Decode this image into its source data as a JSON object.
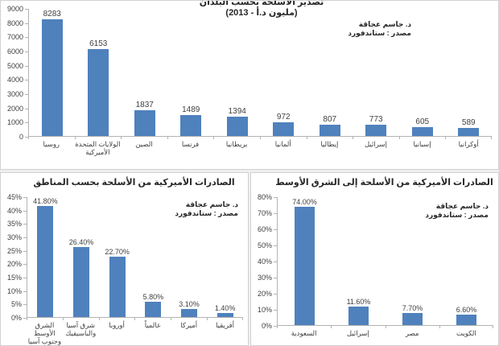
{
  "accent_color": "#4f81bd",
  "chart_data": [
    {
      "id": "by_country",
      "type": "bar",
      "title_lines": [
        "تصدير الأسلحة بحسب البلدان",
        "(مليون د.أ - 2013)"
      ],
      "attribution": [
        "د. جاسم عجاقة",
        "مصدر : ستاندفورد"
      ],
      "categories": [
        "روسيا",
        "الولايات المتحدة\nالأميركية",
        "الصين",
        "فرنسا",
        "بريطانيا",
        "ألمانيا",
        "إيطاليا",
        "إسرائيل",
        "إسبانيا",
        "أوكرانيا"
      ],
      "values": [
        8283,
        6153,
        1837,
        1489,
        1394,
        972,
        807,
        773,
        605,
        589
      ],
      "value_labels": [
        "8283",
        "6153",
        "1837",
        "1489",
        "1394",
        "972",
        "807",
        "773",
        "605",
        "589"
      ],
      "ylim": [
        0,
        9000
      ],
      "ytick_labels": [
        "0",
        "1000",
        "2000",
        "3000",
        "4000",
        "5000",
        "6000",
        "7000",
        "8000",
        "9000"
      ],
      "grid": "off",
      "legend": "none",
      "bar_color": "#4f81bd"
    },
    {
      "id": "by_region",
      "type": "bar",
      "title_lines": [
        "الصادرات الأميركية من الأسلحة بحسب المناطق"
      ],
      "attribution": [
        "د. جاسم عجاقة",
        "مصدر : ستاندفورد"
      ],
      "categories": [
        "الشرق الأوسط\nوجنوب آسيا",
        "شرق آسيا\nوالباسيفيك",
        "أوروبا",
        "عالمياً",
        "أميركا",
        "أفريقيا"
      ],
      "values": [
        41.8,
        26.4,
        22.7,
        5.8,
        3.1,
        1.4
      ],
      "value_labels": [
        "41.80%",
        "26.40%",
        "22.70%",
        "5.80%",
        "3.10%",
        "1.40%"
      ],
      "ylim": [
        0,
        45
      ],
      "ytick_labels": [
        "0%",
        "5%",
        "10%",
        "15%",
        "20%",
        "25%",
        "30%",
        "35%",
        "40%",
        "45%"
      ],
      "grid": "off",
      "legend": "none",
      "bar_color": "#4f81bd"
    },
    {
      "id": "to_middle_east",
      "type": "bar",
      "title_lines": [
        "الصادرات الأميركية من الأسلحة إلى الشرق الأوسط"
      ],
      "attribution": [
        "د. جاسم عجاقة",
        "مصدر : ستاندفورد"
      ],
      "categories": [
        "السعودية",
        "إسرائيل",
        "مصر",
        "الكويت"
      ],
      "values": [
        74.0,
        11.6,
        7.7,
        6.6
      ],
      "value_labels": [
        "74.00%",
        "11.60%",
        "7.70%",
        "6.60%"
      ],
      "ylim": [
        0,
        80
      ],
      "ytick_labels": [
        "0%",
        "10%",
        "20%",
        "30%",
        "40%",
        "50%",
        "60%",
        "70%",
        "80%"
      ],
      "grid": "off",
      "legend": "none",
      "bar_color": "#4f81bd"
    }
  ]
}
